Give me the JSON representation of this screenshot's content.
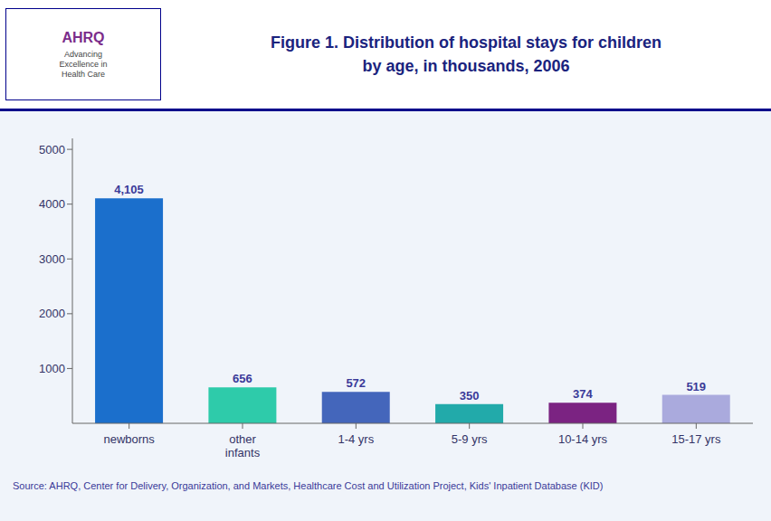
{
  "chart_data": {
    "type": "bar",
    "title": "Figure 1. Distribution of hospital stays for children\nby age, in thousands, 2006",
    "annotations": [
      "AHRQ",
      "Advancing\nExcellence in\nHealth Care",
      "Source: AHRQ, Center for Delivery, Organization, and Markets, Healthcare Cost and Utilization Project, Kids' Inpatient Database (KID)"
    ],
    "categories": [
      "newborns",
      "other\ninfants",
      "1-4 yrs",
      "5-9 yrs",
      "10-14 yrs",
      "15-17 yrs"
    ],
    "values": [
      4105,
      656,
      572,
      350,
      374,
      519
    ],
    "value_labels": [
      "4,105",
      "656",
      "572",
      "350",
      "374",
      "519"
    ],
    "data_labels": true,
    "colors": [
      "#1B6FCC",
      "#2ECBAA",
      "#4466BB",
      "#22AAAA",
      "#7B2382",
      "#AAAADD"
    ],
    "ylim": [
      0,
      5200
    ],
    "yticks": [
      1000,
      2000,
      3000,
      4000,
      5000
    ],
    "grid": false
  }
}
